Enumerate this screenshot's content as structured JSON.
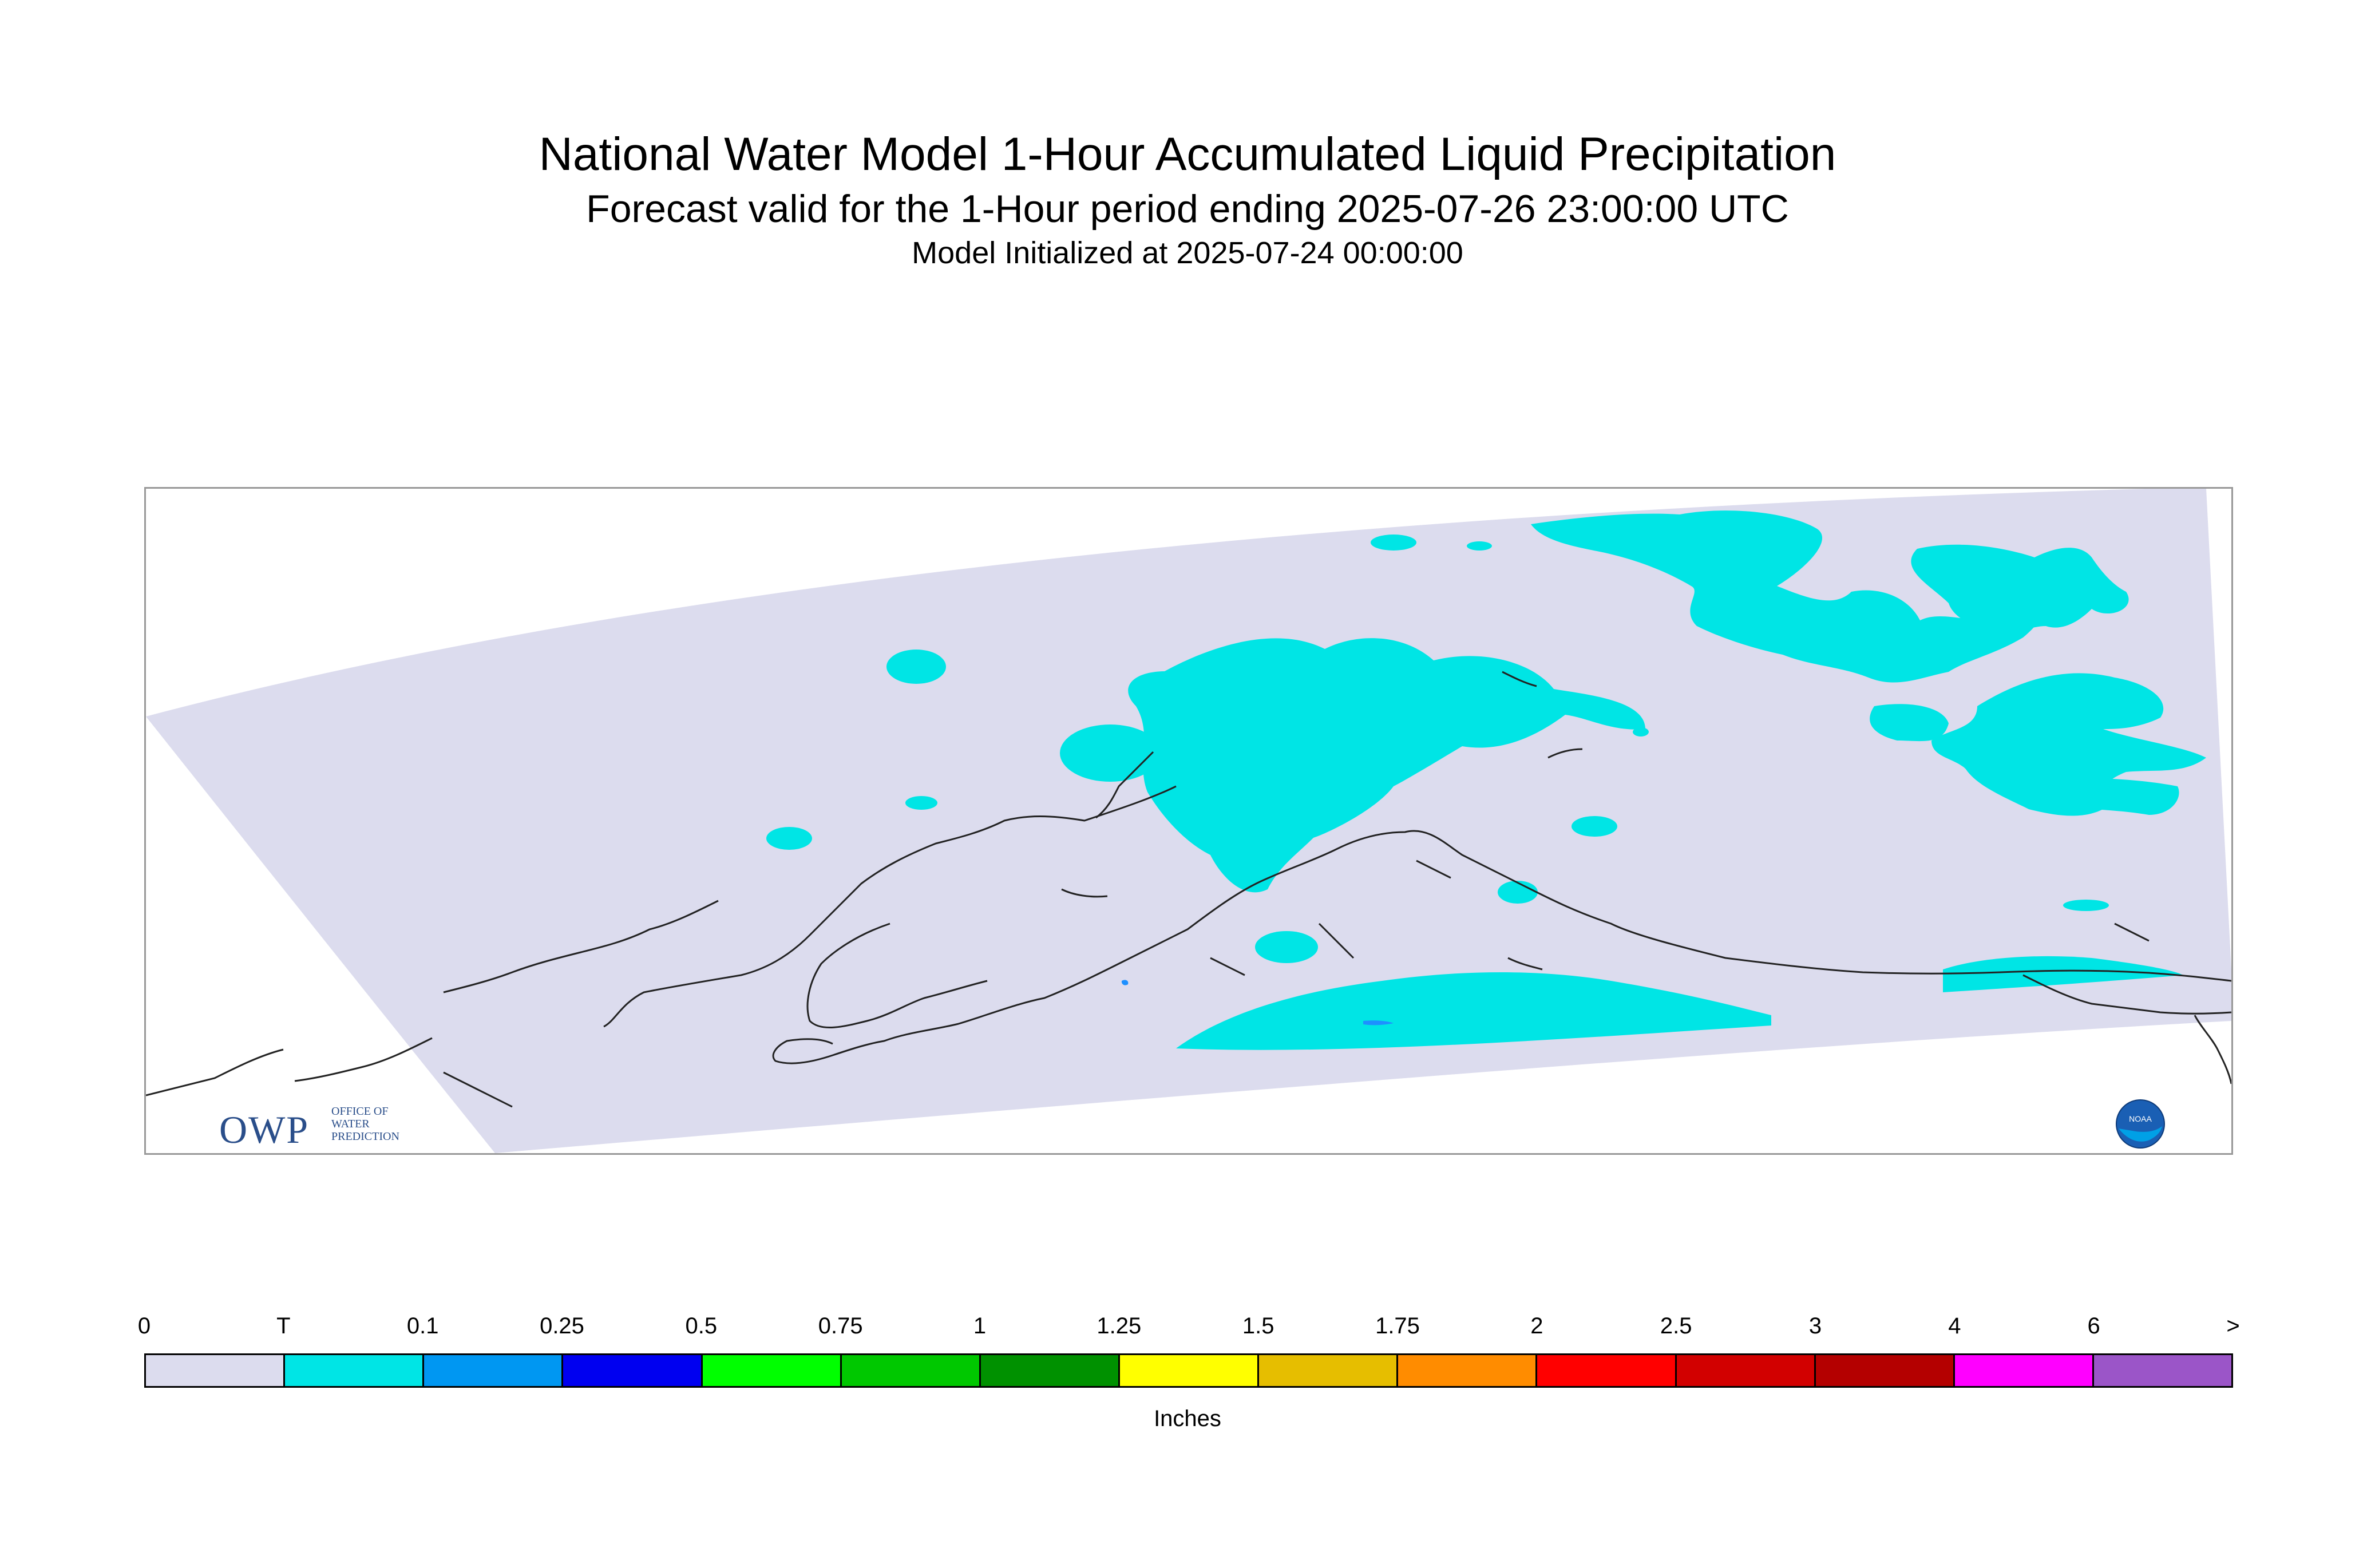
{
  "header": {
    "title": "National Water Model 1-Hour Accumulated Liquid Precipitation",
    "subtitle": "Forecast valid for the 1-Hour period ending 2025-07-26 23:00:00 UTC",
    "init": "Model Initialized at 2025-07-24 00:00:00"
  },
  "map": {
    "region": "Alaska",
    "domain_fill": "#dcdcee",
    "precip_fill": "#00e5e5",
    "heavier_fill": "#1e90ff",
    "coastline_color": "#000000"
  },
  "logos": {
    "owp": {
      "mark": "OWP",
      "text_lines": [
        "OFFICE OF",
        "WATER",
        "PREDICTION"
      ]
    },
    "noaa": {
      "mark": "NOAA"
    }
  },
  "legend": {
    "labels": [
      "0",
      "T",
      "0.1",
      "0.25",
      "0.5",
      "0.75",
      "1",
      "1.25",
      "1.5",
      "1.75",
      "2",
      "2.5",
      "3",
      "4",
      "6",
      ">"
    ],
    "colors": [
      "#dcdcee",
      "#00e5e5",
      "#0097f2",
      "#0000f0",
      "#00ff00",
      "#00c800",
      "#009100",
      "#ffff00",
      "#e6be00",
      "#ff8c00",
      "#ff0000",
      "#d20000",
      "#b40000",
      "#ff00ff",
      "#9b55c8"
    ],
    "units": "Inches"
  }
}
